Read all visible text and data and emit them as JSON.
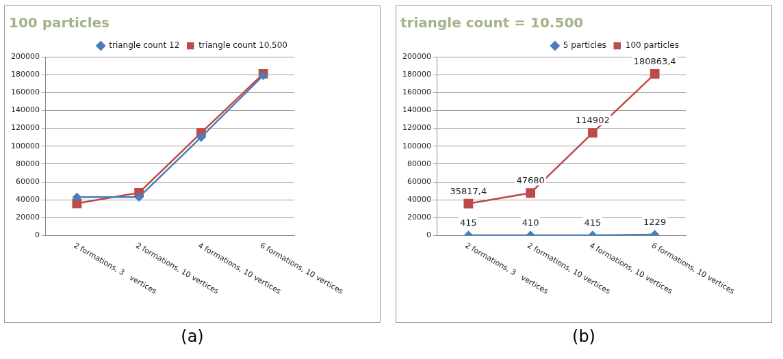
{
  "chart_data": [
    {
      "type": "line",
      "title": "100 particles",
      "categories": [
        "2 formations, 3   vertices",
        "2 formations, 10 vertices",
        "4 formations, 10 vertices",
        "6 formations, 10 vertices"
      ],
      "series": [
        {
          "name": "triangle count 12",
          "color": "#4a7ebb",
          "marker": "diamond",
          "values": [
            43000,
            43000,
            110000,
            179000
          ]
        },
        {
          "name": "triangle count 10,500",
          "color": "#be4b48",
          "marker": "square",
          "values": [
            36000,
            48000,
            115000,
            181000
          ]
        }
      ],
      "ylim": [
        0,
        200000
      ],
      "yticks": [
        0,
        20000,
        40000,
        60000,
        80000,
        100000,
        120000,
        140000,
        160000,
        180000,
        200000
      ],
      "grid": "y",
      "legend": "top right",
      "annotations": [
        "(a)"
      ]
    },
    {
      "type": "line",
      "title": "triangle count = 10.500",
      "categories": [
        "2 formations, 3   vertices",
        "2 formations, 10 vertices",
        "4 formations, 10 vertices",
        "6 formations, 10 vertices"
      ],
      "series": [
        {
          "name": "5 particles",
          "color": "#4a7ebb",
          "marker": "diamond",
          "values": [
            415,
            410,
            415,
            1229
          ],
          "value_labels": [
            "415",
            "410",
            "415",
            "1229"
          ]
        },
        {
          "name": "100 particles",
          "color": "#be4b48",
          "marker": "square",
          "values": [
            35817.4,
            47680,
            114902,
            180863.4
          ],
          "value_labels": [
            "35817,4",
            "47680",
            "114902",
            "180863,4"
          ]
        }
      ],
      "ylim": [
        0,
        200000
      ],
      "yticks": [
        0,
        20000,
        40000,
        60000,
        80000,
        100000,
        120000,
        140000,
        160000,
        180000,
        200000
      ],
      "grid": "y",
      "legend": "top right",
      "annotations": [
        "(b)"
      ]
    }
  ]
}
